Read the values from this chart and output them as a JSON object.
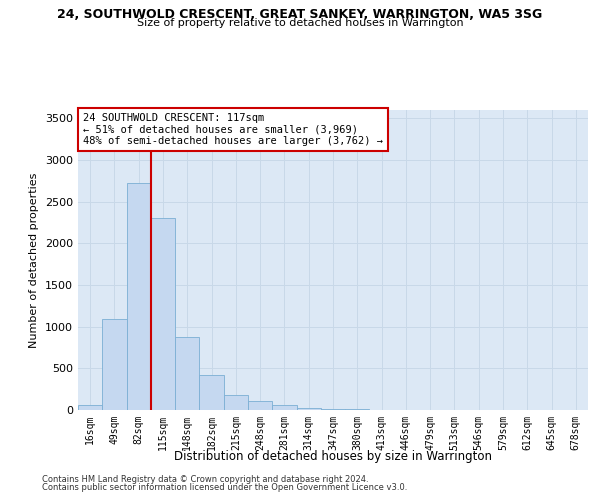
{
  "title1": "24, SOUTHWOLD CRESCENT, GREAT SANKEY, WARRINGTON, WA5 3SG",
  "title2": "Size of property relative to detached houses in Warrington",
  "xlabel": "Distribution of detached houses by size in Warrington",
  "ylabel": "Number of detached properties",
  "categories": [
    "16sqm",
    "49sqm",
    "82sqm",
    "115sqm",
    "148sqm",
    "182sqm",
    "215sqm",
    "248sqm",
    "281sqm",
    "314sqm",
    "347sqm",
    "380sqm",
    "413sqm",
    "446sqm",
    "479sqm",
    "513sqm",
    "546sqm",
    "579sqm",
    "612sqm",
    "645sqm",
    "678sqm"
  ],
  "values": [
    55,
    1090,
    2720,
    2310,
    880,
    420,
    175,
    105,
    60,
    30,
    18,
    8,
    5,
    3,
    2,
    2,
    1,
    1,
    0,
    0,
    0
  ],
  "bar_color": "#c5d8f0",
  "bar_edge_color": "#7bafd4",
  "annotation_text": "24 SOUTHWOLD CRESCENT: 117sqm\n← 51% of detached houses are smaller (3,969)\n48% of semi-detached houses are larger (3,762) →",
  "annotation_box_color": "#cc0000",
  "vline_color": "#cc0000",
  "ylim": [
    0,
    3600
  ],
  "yticks": [
    0,
    500,
    1000,
    1500,
    2000,
    2500,
    3000,
    3500
  ],
  "grid_color": "#c8d8e8",
  "bg_color": "#dce8f5",
  "footer1": "Contains HM Land Registry data © Crown copyright and database right 2024.",
  "footer2": "Contains public sector information licensed under the Open Government Licence v3.0."
}
